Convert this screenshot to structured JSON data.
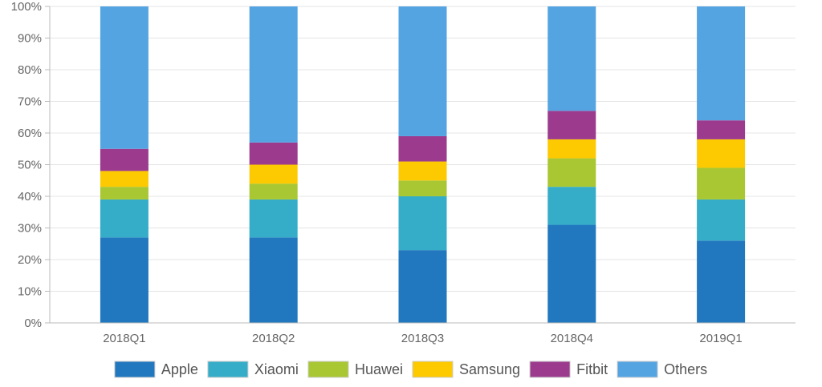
{
  "chart_data": {
    "type": "bar",
    "stacked": true,
    "categories": [
      "2018Q1",
      "2018Q2",
      "2018Q3",
      "2018Q4",
      "2019Q1"
    ],
    "series": [
      {
        "name": "Apple",
        "color": "#2178be",
        "values": [
          27,
          27,
          23,
          31,
          26
        ]
      },
      {
        "name": "Xiaomi",
        "color": "#35adc9",
        "values": [
          12,
          12,
          17,
          12,
          13
        ]
      },
      {
        "name": "Huawei",
        "color": "#a9c732",
        "values": [
          4,
          5,
          5,
          9,
          10
        ]
      },
      {
        "name": "Samsung",
        "color": "#fdc900",
        "values": [
          5,
          6,
          6,
          6,
          9
        ]
      },
      {
        "name": "Fitbit",
        "color": "#9c3b8e",
        "values": [
          7,
          7,
          8,
          9,
          6
        ]
      },
      {
        "name": "Others",
        "color": "#55a4e2",
        "values": [
          45,
          43,
          41,
          33,
          36
        ]
      }
    ],
    "ylim": [
      0,
      100
    ],
    "yticks": [
      "0%",
      "10%",
      "20%",
      "30%",
      "40%",
      "50%",
      "60%",
      "70%",
      "80%",
      "90%",
      "100%"
    ],
    "grid": true,
    "legend_position": "bottom"
  }
}
